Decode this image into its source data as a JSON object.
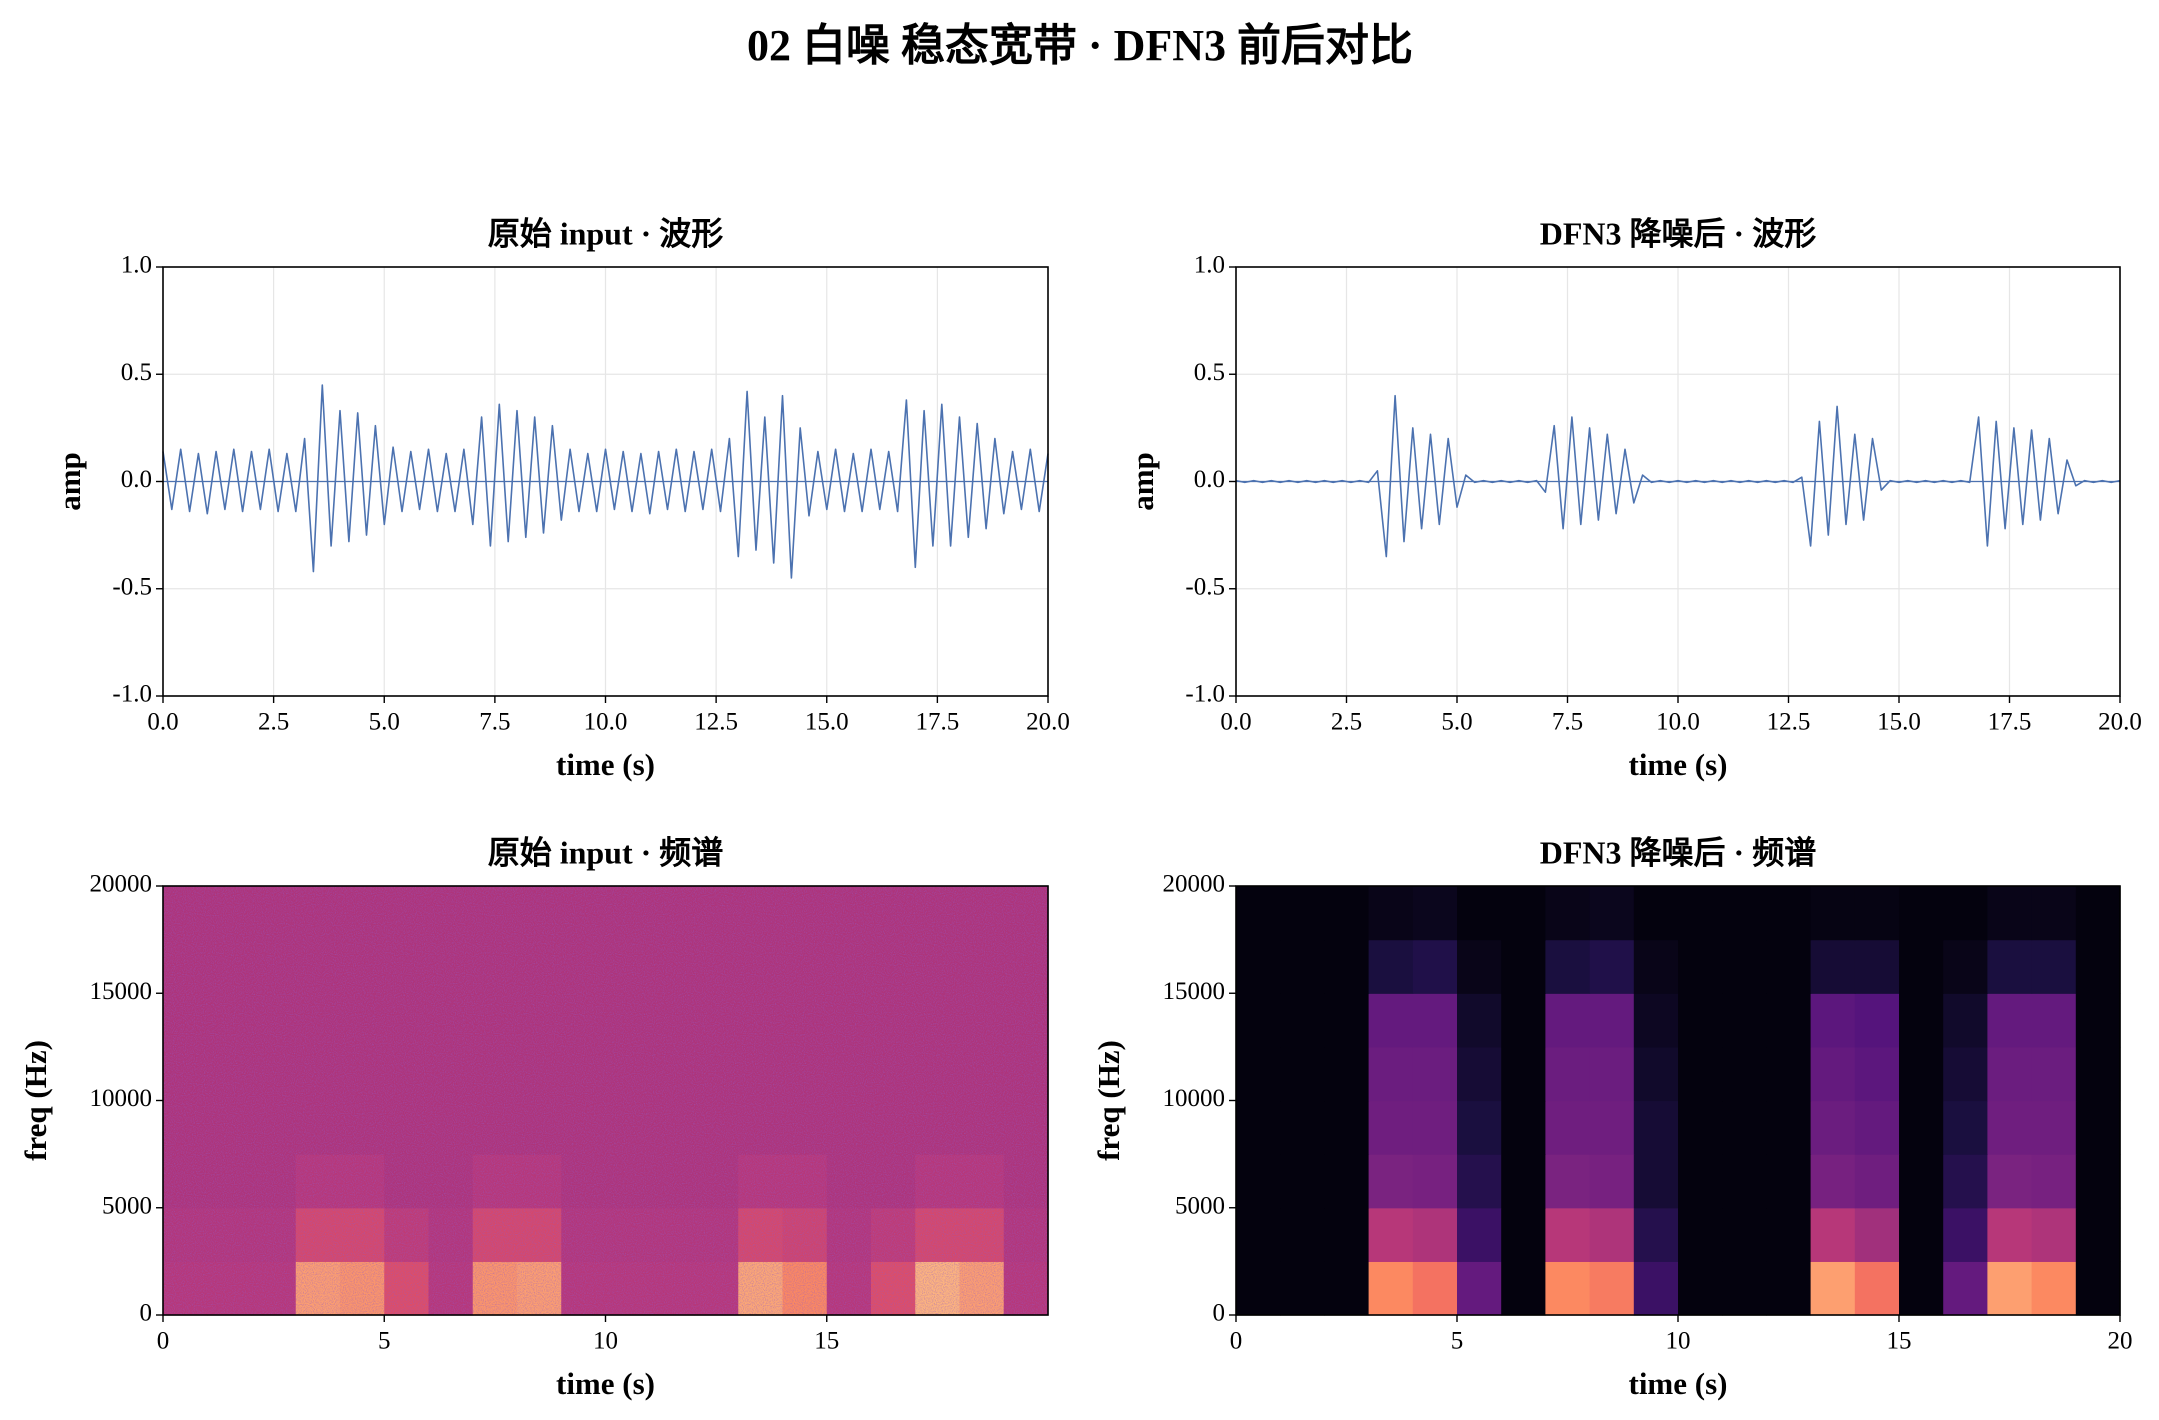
{
  "suptitle": "02 白噪 稳态宽带 · DFN3 前后对比",
  "chart_data": [
    {
      "type": "line",
      "title": "原始 input · 波形",
      "xlabel": "time (s)",
      "ylabel": "amp",
      "color": "#4c72b0",
      "grid": true,
      "xlim": [
        0,
        20
      ],
      "ylim": [
        -1,
        1
      ],
      "xticks": [
        {
          "value": 0,
          "label": "0.0"
        },
        {
          "value": 2.5,
          "label": "2.5"
        },
        {
          "value": 5,
          "label": "5.0"
        },
        {
          "value": 7.5,
          "label": "7.5"
        },
        {
          "value": 10,
          "label": "10.0"
        },
        {
          "value": 12.5,
          "label": "12.5"
        },
        {
          "value": 15,
          "label": "15.0"
        },
        {
          "value": 17.5,
          "label": "17.5"
        },
        {
          "value": 20,
          "label": "20.0"
        }
      ],
      "yticks": [
        {
          "value": -1,
          "label": "-1.0"
        },
        {
          "value": -0.5,
          "label": "-0.5"
        },
        {
          "value": 0,
          "label": "0.0"
        },
        {
          "value": 0.5,
          "label": "0.5"
        },
        {
          "value": 1,
          "label": "1.0"
        }
      ],
      "x": [
        0,
        0.2,
        0.4,
        0.6,
        0.8,
        1,
        1.2,
        1.4,
        1.6,
        1.8,
        2,
        2.2,
        2.4,
        2.6,
        2.8,
        3,
        3.2,
        3.4,
        3.6,
        3.8,
        4,
        4.2,
        4.4,
        4.6,
        4.8,
        5,
        5.2,
        5.4,
        5.6,
        5.8,
        6,
        6.2,
        6.4,
        6.6,
        6.8,
        7,
        7.2,
        7.4,
        7.6,
        7.8,
        8,
        8.2,
        8.4,
        8.6,
        8.8,
        9,
        9.2,
        9.4,
        9.6,
        9.8,
        10,
        10.2,
        10.4,
        10.6,
        10.8,
        11,
        11.2,
        11.4,
        11.6,
        11.8,
        12,
        12.2,
        12.4,
        12.6,
        12.8,
        13,
        13.2,
        13.4,
        13.6,
        13.8,
        14,
        14.2,
        14.4,
        14.6,
        14.8,
        15,
        15.2,
        15.4,
        15.6,
        15.8,
        16,
        16.2,
        16.4,
        16.6,
        16.8,
        17,
        17.2,
        17.4,
        17.6,
        17.8,
        18,
        18.2,
        18.4,
        18.6,
        18.8,
        19,
        19.2,
        19.4,
        19.6,
        19.8,
        20
      ],
      "values": [
        0.14,
        -0.13,
        0.15,
        -0.14,
        0.13,
        -0.15,
        0.14,
        -0.13,
        0.15,
        -0.14,
        0.14,
        -0.13,
        0.15,
        -0.14,
        0.13,
        -0.14,
        0.2,
        -0.42,
        0.45,
        -0.3,
        0.33,
        -0.28,
        0.32,
        -0.25,
        0.26,
        -0.2,
        0.16,
        -0.14,
        0.14,
        -0.13,
        0.15,
        -0.14,
        0.13,
        -0.14,
        0.15,
        -0.2,
        0.3,
        -0.3,
        0.36,
        -0.28,
        0.33,
        -0.26,
        0.3,
        -0.24,
        0.26,
        -0.18,
        0.15,
        -0.14,
        0.13,
        -0.14,
        0.15,
        -0.13,
        0.14,
        -0.14,
        0.13,
        -0.15,
        0.14,
        -0.13,
        0.15,
        -0.14,
        0.14,
        -0.13,
        0.15,
        -0.14,
        0.2,
        -0.35,
        0.42,
        -0.32,
        0.3,
        -0.38,
        0.4,
        -0.45,
        0.25,
        -0.16,
        0.14,
        -0.13,
        0.15,
        -0.14,
        0.13,
        -0.14,
        0.15,
        -0.13,
        0.14,
        -0.14,
        0.38,
        -0.4,
        0.33,
        -0.3,
        0.36,
        -0.3,
        0.3,
        -0.26,
        0.27,
        -0.22,
        0.2,
        -0.15,
        0.14,
        -0.13,
        0.15,
        -0.14,
        0.13
      ]
    },
    {
      "type": "line",
      "title": "DFN3 降噪后 · 波形",
      "xlabel": "time (s)",
      "ylabel": "amp",
      "color": "#4c72b0",
      "grid": true,
      "xlim": [
        0,
        20
      ],
      "ylim": [
        -1,
        1
      ],
      "xticks": [
        {
          "value": 0,
          "label": "0.0"
        },
        {
          "value": 2.5,
          "label": "2.5"
        },
        {
          "value": 5,
          "label": "5.0"
        },
        {
          "value": 7.5,
          "label": "7.5"
        },
        {
          "value": 10,
          "label": "10.0"
        },
        {
          "value": 12.5,
          "label": "12.5"
        },
        {
          "value": 15,
          "label": "15.0"
        },
        {
          "value": 17.5,
          "label": "17.5"
        },
        {
          "value": 20,
          "label": "20.0"
        }
      ],
      "yticks": [
        {
          "value": -1,
          "label": "-1.0"
        },
        {
          "value": -0.5,
          "label": "-0.5"
        },
        {
          "value": 0,
          "label": "0.0"
        },
        {
          "value": 0.5,
          "label": "0.5"
        },
        {
          "value": 1,
          "label": "1.0"
        }
      ],
      "x": [
        0,
        0.2,
        0.4,
        0.6,
        0.8,
        1,
        1.2,
        1.4,
        1.6,
        1.8,
        2,
        2.2,
        2.4,
        2.6,
        2.8,
        3,
        3.2,
        3.4,
        3.6,
        3.8,
        4,
        4.2,
        4.4,
        4.6,
        4.8,
        5,
        5.2,
        5.4,
        5.6,
        5.8,
        6,
        6.2,
        6.4,
        6.6,
        6.8,
        7,
        7.2,
        7.4,
        7.6,
        7.8,
        8,
        8.2,
        8.4,
        8.6,
        8.8,
        9,
        9.2,
        9.4,
        9.6,
        9.8,
        10,
        10.2,
        10.4,
        10.6,
        10.8,
        11,
        11.2,
        11.4,
        11.6,
        11.8,
        12,
        12.2,
        12.4,
        12.6,
        12.8,
        13,
        13.2,
        13.4,
        13.6,
        13.8,
        14,
        14.2,
        14.4,
        14.6,
        14.8,
        15,
        15.2,
        15.4,
        15.6,
        15.8,
        16,
        16.2,
        16.4,
        16.6,
        16.8,
        17,
        17.2,
        17.4,
        17.6,
        17.8,
        18,
        18.2,
        18.4,
        18.6,
        18.8,
        19,
        19.2,
        19.4,
        19.6,
        19.8,
        20
      ],
      "values": [
        0.004,
        -0.004,
        0.004,
        -0.004,
        0.004,
        -0.004,
        0.004,
        -0.004,
        0.004,
        -0.004,
        0.004,
        -0.004,
        0.004,
        -0.004,
        0.004,
        -0.004,
        0.05,
        -0.35,
        0.4,
        -0.28,
        0.25,
        -0.22,
        0.22,
        -0.2,
        0.2,
        -0.12,
        0.03,
        -0.004,
        0.004,
        -0.004,
        0.004,
        -0.004,
        0.004,
        -0.004,
        0.004,
        -0.05,
        0.26,
        -0.22,
        0.3,
        -0.2,
        0.25,
        -0.18,
        0.22,
        -0.15,
        0.15,
        -0.1,
        0.03,
        -0.004,
        0.004,
        -0.004,
        0.004,
        -0.004,
        0.004,
        -0.004,
        0.004,
        -0.004,
        0.004,
        -0.004,
        0.004,
        -0.004,
        0.004,
        -0.004,
        0.004,
        -0.004,
        0.02,
        -0.3,
        0.28,
        -0.25,
        0.35,
        -0.2,
        0.22,
        -0.18,
        0.2,
        -0.04,
        0.004,
        -0.004,
        0.004,
        -0.004,
        0.004,
        -0.004,
        0.004,
        -0.004,
        0.004,
        -0.004,
        0.3,
        -0.3,
        0.28,
        -0.22,
        0.25,
        -0.2,
        0.24,
        -0.18,
        0.2,
        -0.15,
        0.1,
        -0.02,
        0.004,
        -0.004,
        0.004,
        -0.004,
        0.004
      ]
    },
    {
      "type": "heatmap",
      "title": "原始 input · 频谱",
      "xlabel": "time (s)",
      "ylabel": "freq (Hz)",
      "colormap": "magma",
      "texture": true,
      "xlim": [
        0,
        20
      ],
      "ylim": [
        0,
        20000
      ],
      "xticks": [
        0,
        5,
        10,
        15
      ],
      "yticks": [
        0,
        5000,
        10000,
        15000,
        20000
      ],
      "z": [
        [
          0.5,
          0.5,
          0.5,
          0.8,
          0.78,
          0.6,
          0.5,
          0.78,
          0.8,
          0.5,
          0.5,
          0.5,
          0.5,
          0.82,
          0.75,
          0.5,
          0.6,
          0.85,
          0.8,
          0.5
        ],
        [
          0.49,
          0.49,
          0.49,
          0.58,
          0.58,
          0.52,
          0.49,
          0.58,
          0.58,
          0.49,
          0.49,
          0.49,
          0.49,
          0.58,
          0.56,
          0.49,
          0.52,
          0.58,
          0.58,
          0.49
        ],
        [
          0.48,
          0.48,
          0.48,
          0.5,
          0.5,
          0.48,
          0.48,
          0.5,
          0.5,
          0.48,
          0.48,
          0.48,
          0.48,
          0.5,
          0.5,
          0.48,
          0.48,
          0.5,
          0.5,
          0.48
        ],
        [
          0.48,
          0.48,
          0.48,
          0.48,
          0.48,
          0.48,
          0.48,
          0.48,
          0.48,
          0.48,
          0.48,
          0.48,
          0.48,
          0.48,
          0.48,
          0.48,
          0.48,
          0.48,
          0.48,
          0.48
        ],
        [
          0.48,
          0.48,
          0.48,
          0.48,
          0.48,
          0.48,
          0.48,
          0.48,
          0.48,
          0.48,
          0.48,
          0.48,
          0.48,
          0.48,
          0.48,
          0.48,
          0.48,
          0.48,
          0.48,
          0.48
        ],
        [
          0.48,
          0.48,
          0.48,
          0.48,
          0.48,
          0.48,
          0.48,
          0.48,
          0.48,
          0.48,
          0.48,
          0.48,
          0.48,
          0.48,
          0.48,
          0.48,
          0.48,
          0.48,
          0.48,
          0.48
        ],
        [
          0.48,
          0.48,
          0.48,
          0.48,
          0.48,
          0.48,
          0.48,
          0.48,
          0.48,
          0.48,
          0.48,
          0.48,
          0.48,
          0.48,
          0.48,
          0.48,
          0.48,
          0.48,
          0.48,
          0.48
        ],
        [
          0.48,
          0.48,
          0.48,
          0.48,
          0.48,
          0.48,
          0.48,
          0.48,
          0.48,
          0.48,
          0.48,
          0.48,
          0.48,
          0.48,
          0.48,
          0.48,
          0.48,
          0.48,
          0.48,
          0.48
        ]
      ]
    },
    {
      "type": "heatmap",
      "title": "DFN3 降噪后 · 频谱",
      "xlabel": "time (s)",
      "ylabel": "freq (Hz)",
      "colormap": "magma",
      "texture": false,
      "xlim": [
        0,
        20
      ],
      "ylim": [
        0,
        20000
      ],
      "xticks": [
        0,
        5,
        10,
        15,
        20
      ],
      "yticks": [
        0,
        5000,
        10000,
        15000,
        20000
      ],
      "z": [
        [
          0.02,
          0.02,
          0.02,
          0.75,
          0.7,
          0.3,
          0.02,
          0.75,
          0.72,
          0.2,
          0.02,
          0.02,
          0.02,
          0.8,
          0.7,
          0.02,
          0.3,
          0.8,
          0.75,
          0.02
        ],
        [
          0.02,
          0.02,
          0.02,
          0.5,
          0.48,
          0.2,
          0.02,
          0.5,
          0.48,
          0.15,
          0.02,
          0.02,
          0.02,
          0.5,
          0.45,
          0.02,
          0.2,
          0.5,
          0.48,
          0.02
        ],
        [
          0.02,
          0.02,
          0.02,
          0.36,
          0.35,
          0.15,
          0.02,
          0.36,
          0.35,
          0.1,
          0.02,
          0.02,
          0.02,
          0.35,
          0.33,
          0.02,
          0.15,
          0.36,
          0.35,
          0.02
        ],
        [
          0.02,
          0.02,
          0.02,
          0.33,
          0.33,
          0.12,
          0.02,
          0.33,
          0.33,
          0.1,
          0.02,
          0.02,
          0.02,
          0.32,
          0.3,
          0.02,
          0.12,
          0.33,
          0.33,
          0.02
        ],
        [
          0.02,
          0.02,
          0.02,
          0.32,
          0.32,
          0.1,
          0.02,
          0.32,
          0.32,
          0.08,
          0.02,
          0.02,
          0.02,
          0.3,
          0.28,
          0.02,
          0.1,
          0.32,
          0.32,
          0.02
        ],
        [
          0.02,
          0.02,
          0.02,
          0.3,
          0.3,
          0.08,
          0.02,
          0.3,
          0.3,
          0.06,
          0.02,
          0.02,
          0.02,
          0.28,
          0.26,
          0.02,
          0.08,
          0.3,
          0.3,
          0.02
        ],
        [
          0.02,
          0.02,
          0.02,
          0.12,
          0.14,
          0.04,
          0.02,
          0.12,
          0.14,
          0.04,
          0.02,
          0.02,
          0.02,
          0.1,
          0.1,
          0.02,
          0.04,
          0.12,
          0.12,
          0.02
        ],
        [
          0.02,
          0.02,
          0.02,
          0.04,
          0.05,
          0.02,
          0.02,
          0.04,
          0.05,
          0.02,
          0.02,
          0.02,
          0.02,
          0.03,
          0.03,
          0.02,
          0.02,
          0.04,
          0.04,
          0.02
        ]
      ]
    }
  ]
}
